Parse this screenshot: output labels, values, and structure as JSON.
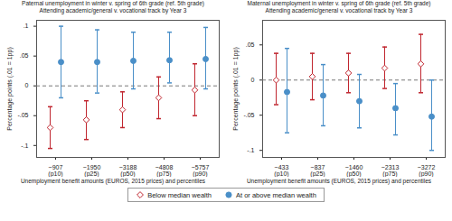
{
  "chart_data": [
    {
      "type": "scatter",
      "title": "Paternal unemployment in winter v. spring of 6th grade (ref. 5th grade)",
      "subtitle": "Attending academic/general v. vocational track by Year 3",
      "x_label": "Unemployment benefit amounts (EUROS, 2015 prices) and percentiles",
      "y_label": "Percentage points (.01 = 1pp)",
      "categories": [
        "~907\n(p10)",
        "~1950\n(p25)",
        "~3188\n(p50)",
        "~4808\n(p75)",
        "~5757\n(p90)"
      ],
      "ylim": [
        -0.12,
        0.11
      ],
      "yticks": [
        {
          "value": -0.1,
          "label": "-.1"
        },
        {
          "value": -0.05,
          "label": "-.05"
        },
        0,
        {
          "value": 0.05,
          "label": ".05"
        },
        {
          "value": 0.1,
          "label": ".1"
        }
      ],
      "ref_line": 0,
      "legend": "bottom",
      "series": [
        {
          "name": "Below median wealth",
          "color": "#c0262f",
          "marker": "diamond",
          "values": [
            -0.07,
            -0.057,
            -0.04,
            -0.02,
            -0.007
          ],
          "ci_low": [
            -0.105,
            -0.09,
            -0.07,
            -0.055,
            -0.05
          ],
          "ci_high": [
            -0.035,
            -0.025,
            -0.01,
            0.015,
            0.037
          ]
        },
        {
          "name": "At or above median wealth",
          "color": "#4a8fc8",
          "marker": "circle",
          "values": [
            0.04,
            0.04,
            0.042,
            0.043,
            0.045
          ],
          "ci_low": [
            -0.02,
            -0.012,
            -0.005,
            0.005,
            -0.005
          ],
          "ci_high": [
            0.1,
            0.094,
            0.09,
            0.09,
            0.098
          ]
        }
      ]
    },
    {
      "type": "scatter",
      "title": "Maternal unemployment in winter v. spring of 6th grade (ref. 5th grade)",
      "subtitle": "Attending academic/general v. vocational track by Year 3",
      "x_label": "Unemployment benefit amounts (EUROS, 2015 prices) and percentiles",
      "y_label": "Percentage points (.01 = 1pp)",
      "categories": [
        "~433\n(p10)",
        "~837\n(p25)",
        "~1460\n(p50)",
        "~2313\n(p75)",
        "~3272\n(p90)"
      ],
      "ylim": [
        -0.11,
        0.085
      ],
      "yticks": [
        {
          "value": -0.1,
          "label": "-.1"
        },
        {
          "value": -0.05,
          "label": "-.05"
        },
        0,
        {
          "value": 0.05,
          "label": ".05"
        }
      ],
      "ref_line": 0,
      "legend": "bottom",
      "series": [
        {
          "name": "Below median wealth",
          "color": "#c0262f",
          "marker": "diamond",
          "values": [
            0.0,
            0.005,
            0.01,
            0.017,
            0.023
          ],
          "ci_low": [
            -0.035,
            -0.028,
            -0.018,
            -0.012,
            -0.018
          ],
          "ci_high": [
            0.038,
            0.038,
            0.038,
            0.047,
            0.065
          ]
        },
        {
          "name": "At or above median wealth",
          "color": "#4a8fc8",
          "marker": "circle",
          "values": [
            -0.017,
            -0.022,
            -0.03,
            -0.04,
            -0.052
          ],
          "ci_low": [
            -0.075,
            -0.065,
            -0.068,
            -0.078,
            -0.1
          ],
          "ci_high": [
            0.045,
            0.022,
            0.008,
            -0.005,
            0.0
          ]
        }
      ]
    }
  ]
}
